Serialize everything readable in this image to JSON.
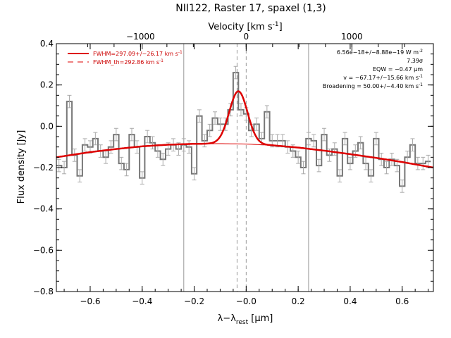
{
  "chart_data": {
    "type": "line",
    "title": "NII122, Raster 17, spaxel (1,3)",
    "xlabel": "λ−λ",
    "xlabel_sub": "rest",
    "xlabel_unit": " [μm]",
    "ylabel": "Flux density [Jy]",
    "top_axis_label": "Velocity [km s",
    "top_axis_label_sup": "-1",
    "top_axis_label_end": "]",
    "xlim": [
      -0.73,
      0.72
    ],
    "ylim": [
      -0.8,
      0.4
    ],
    "x_ticks": [
      -0.6,
      -0.4,
      -0.2,
      0.0,
      0.2,
      0.4,
      0.6
    ],
    "x_tick_labels": [
      "−0.6",
      "−0.4",
      "−0.2",
      "−0.0",
      "0.2",
      "0.4",
      "0.6"
    ],
    "y_ticks": [
      -0.8,
      -0.6,
      -0.4,
      -0.2,
      0.0,
      0.2,
      0.4
    ],
    "y_tick_labels": [
      "−0.8",
      "−0.6",
      "−0.4",
      "−0.2",
      "0.0",
      "0.2",
      "0.4"
    ],
    "top_ticks_velocity": [
      -1000,
      0,
      1000
    ],
    "top_tick_labels": [
      "−1000",
      "0",
      "1000"
    ],
    "velocity_per_micron": 2460,
    "vertical_lines_solid": [
      -0.24,
      0.24
    ],
    "vertical_lines_dashed": [
      -0.035,
      0.0
    ],
    "legend": [
      {
        "text_main": "FWHM=297.09+/−26.17 km s",
        "sup": "-1",
        "style": "solid",
        "color": "#dd0000"
      },
      {
        "text_main": "FWHM_th=292.86 km s",
        "sup": "-1",
        "style": "dashed",
        "color": "#dd0000"
      }
    ],
    "annotations": [
      {
        "main": "6.56e−18+/−8.88e−19 W m",
        "sup": "-2"
      },
      {
        "main": "7.39σ",
        "sup": ""
      },
      {
        "main": "EQW = −0.47 μm",
        "sup": ""
      },
      {
        "main": "v = −67.17+/−15.66 km s",
        "sup": "-1"
      },
      {
        "main": "Broadening = 50.00+/−4.40 km s",
        "sup": "-1"
      }
    ],
    "spectrum": {
      "x": [
        -0.72,
        -0.7,
        -0.68,
        -0.66,
        -0.64,
        -0.62,
        -0.6,
        -0.58,
        -0.56,
        -0.54,
        -0.52,
        -0.5,
        -0.48,
        -0.46,
        -0.44,
        -0.42,
        -0.4,
        -0.38,
        -0.36,
        -0.34,
        -0.32,
        -0.3,
        -0.28,
        -0.26,
        -0.24,
        -0.22,
        -0.2,
        -0.18,
        -0.16,
        -0.14,
        -0.12,
        -0.1,
        -0.08,
        -0.06,
        -0.04,
        -0.02,
        0.0,
        0.02,
        0.04,
        0.06,
        0.08,
        0.1,
        0.12,
        0.14,
        0.16,
        0.18,
        0.2,
        0.22,
        0.24,
        0.26,
        0.28,
        0.3,
        0.32,
        0.34,
        0.36,
        0.38,
        0.4,
        0.42,
        0.44,
        0.46,
        0.48,
        0.5,
        0.52,
        0.54,
        0.56,
        0.58,
        0.6,
        0.62,
        0.64,
        0.66,
        0.68,
        0.7
      ],
      "y": [
        -0.19,
        -0.2,
        0.12,
        -0.14,
        -0.24,
        -0.09,
        -0.1,
        -0.06,
        -0.12,
        -0.15,
        -0.1,
        -0.04,
        -0.18,
        -0.21,
        -0.04,
        -0.1,
        -0.25,
        -0.05,
        -0.08,
        -0.12,
        -0.16,
        -0.11,
        -0.09,
        -0.11,
        -0.09,
        -0.1,
        -0.23,
        0.05,
        -0.07,
        -0.02,
        0.04,
        0.01,
        0.01,
        0.08,
        0.26,
        0.08,
        0.06,
        -0.02,
        0.01,
        -0.06,
        0.07,
        -0.07,
        -0.07,
        -0.07,
        -0.1,
        -0.12,
        -0.15,
        -0.2,
        -0.06,
        -0.07,
        -0.19,
        -0.04,
        -0.14,
        -0.11,
        -0.24,
        -0.06,
        -0.18,
        -0.12,
        -0.08,
        -0.18,
        -0.24,
        -0.06,
        -0.16,
        -0.2,
        -0.16,
        -0.19,
        -0.29,
        -0.15,
        -0.09,
        -0.18,
        -0.18,
        -0.17
      ],
      "err": 0.03
    },
    "continuum": {
      "x": [
        -0.73,
        -0.6,
        -0.5,
        -0.4,
        -0.3,
        -0.2,
        -0.1,
        0.0,
        0.1,
        0.2,
        0.3,
        0.4,
        0.5,
        0.6,
        0.72
      ],
      "y": [
        -0.15,
        -0.125,
        -0.11,
        -0.097,
        -0.089,
        -0.085,
        -0.084,
        -0.086,
        -0.092,
        -0.103,
        -0.118,
        -0.135,
        -0.153,
        -0.173,
        -0.2
      ]
    },
    "gaussian": {
      "center": -0.03,
      "amplitude": 0.255,
      "sigma": 0.035
    }
  }
}
